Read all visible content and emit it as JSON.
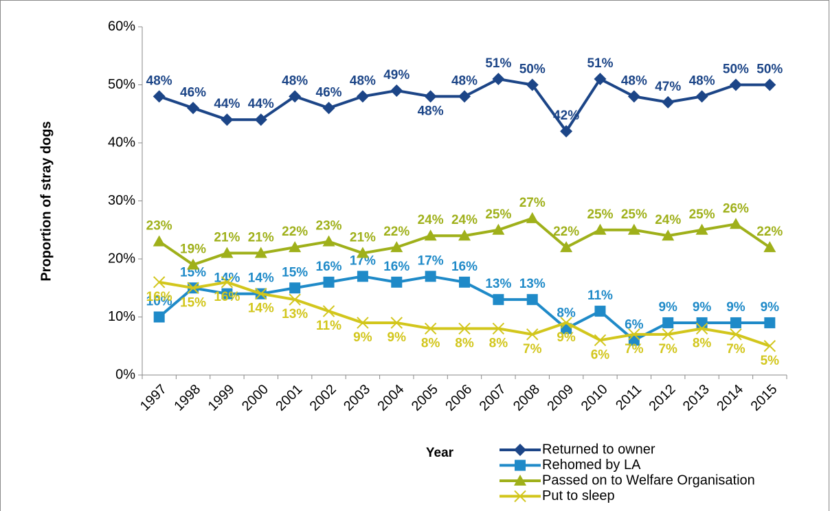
{
  "chart_data": {
    "type": "line",
    "x_label": "Year",
    "y_label": "Proportion of stray dogs",
    "categories": [
      "1997",
      "1998",
      "1999",
      "2000",
      "2001",
      "2002",
      "2003",
      "2004",
      "2005",
      "2006",
      "2007",
      "2008",
      "2009",
      "2010",
      "2011",
      "2012",
      "2013",
      "2014",
      "2015"
    ],
    "ylim": [
      0,
      60
    ],
    "yticks": [
      {
        "value": 0,
        "label": "0%"
      },
      {
        "value": 10,
        "label": "10%"
      },
      {
        "value": 20,
        "label": "20%"
      },
      {
        "value": 30,
        "label": "30%"
      },
      {
        "value": 40,
        "label": "40%"
      },
      {
        "value": 50,
        "label": "50%"
      },
      {
        "value": 60,
        "label": "60%"
      }
    ],
    "series": [
      {
        "name": "Returned to owner",
        "color": "#1c4587",
        "marker": "diamond",
        "values": [
          48,
          46,
          44,
          44,
          48,
          46,
          48,
          49,
          48,
          48,
          51,
          50,
          42,
          51,
          48,
          47,
          48,
          50,
          50
        ],
        "value_labels": [
          "48%",
          "46%",
          "44%",
          "44%",
          "48%",
          "46%",
          "48%",
          "49%",
          "48%",
          "48%",
          "51%",
          "50%",
          "42%",
          "51%",
          "48%",
          "47%",
          "48%",
          "50%",
          "50%"
        ]
      },
      {
        "name": "Rehomed by LA",
        "color": "#1f8ac8",
        "marker": "square",
        "values": [
          10,
          15,
          14,
          14,
          15,
          16,
          17,
          16,
          17,
          16,
          13,
          13,
          8,
          11,
          6,
          9,
          9,
          9,
          9
        ],
        "value_labels": [
          "10%",
          "15%",
          "14%",
          "14%",
          "15%",
          "16%",
          "17%",
          "16%",
          "17%",
          "16%",
          "13%",
          "13%",
          "8%",
          "11%",
          "6%",
          "9%",
          "9%",
          "9%",
          "9%"
        ]
      },
      {
        "name": "Passed on to Welfare Organisation",
        "color": "#9fb01a",
        "marker": "triangle",
        "values": [
          23,
          19,
          21,
          21,
          22,
          23,
          21,
          22,
          24,
          24,
          25,
          27,
          22,
          25,
          25,
          24,
          25,
          26,
          22
        ],
        "value_labels": [
          "23%",
          "19%",
          "21%",
          "21%",
          "22%",
          "23%",
          "21%",
          "22%",
          "24%",
          "24%",
          "25%",
          "27%",
          "22%",
          "25%",
          "25%",
          "24%",
          "25%",
          "26%",
          "22%"
        ]
      },
      {
        "name": "Put to sleep",
        "color": "#d2c61c",
        "marker": "x",
        "values": [
          16,
          15,
          16,
          14,
          13,
          11,
          9,
          9,
          8,
          8,
          8,
          7,
          9,
          6,
          7,
          7,
          8,
          7,
          5
        ],
        "value_labels": [
          "16%",
          "15%",
          "16%",
          "14%",
          "13%",
          "11%",
          "9%",
          "9%",
          "8%",
          "8%",
          "8%",
          "7%",
          "9%",
          "6%",
          "7%",
          "7%",
          "8%",
          "7%",
          "5%"
        ]
      }
    ]
  }
}
